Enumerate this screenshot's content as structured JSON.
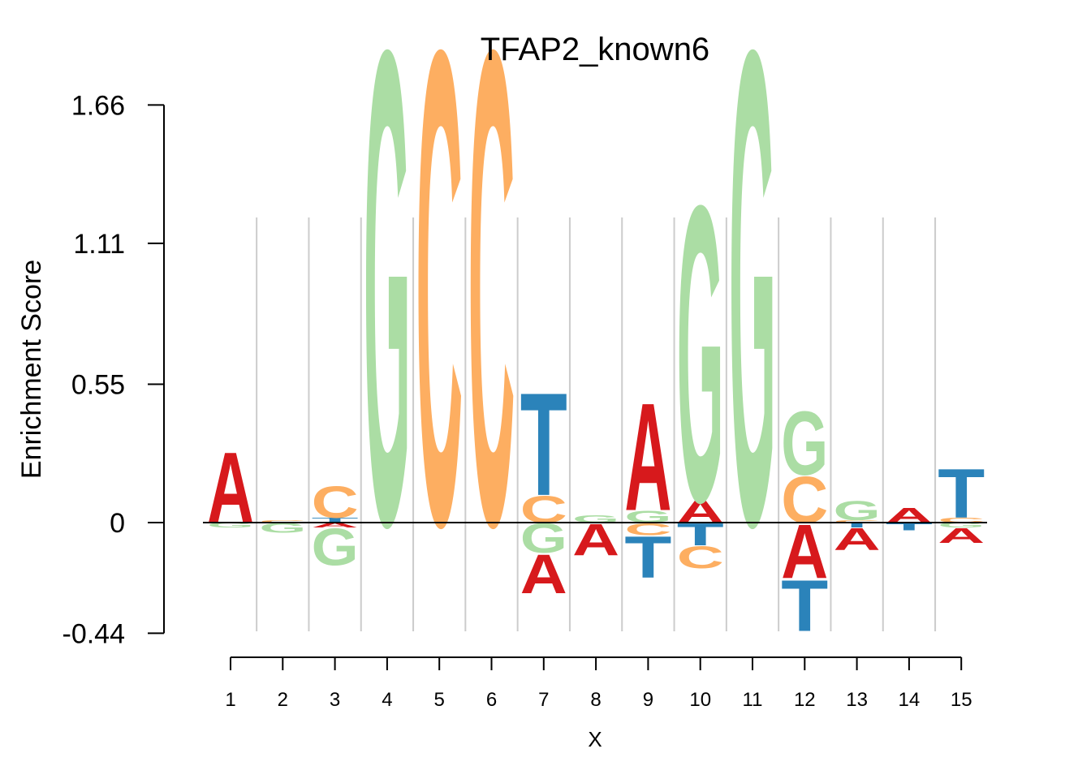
{
  "chart_data": {
    "type": "sequence_logo",
    "title": "TFAP2_known6",
    "xlabel": "X",
    "ylabel": "Enrichment Score",
    "y_ticks": [
      "1.66",
      "1.11",
      "0.55",
      "0",
      "-0.44"
    ],
    "y_tick_values": [
      1.66,
      1.11,
      0.55,
      0,
      -0.44
    ],
    "ylim": [
      -0.44,
      1.66
    ],
    "x_ticks": [
      "1",
      "2",
      "3",
      "4",
      "5",
      "6",
      "7",
      "8",
      "9",
      "10",
      "11",
      "12",
      "13",
      "14",
      "15"
    ],
    "colors": {
      "A": "#d7191c",
      "C": "#fdae61",
      "G": "#abdda4",
      "T": "#2b83ba"
    },
    "grid": true,
    "positions": [
      {
        "pos": 1,
        "pos_stack": [
          {
            "base": "A",
            "height": 0.29
          }
        ],
        "neg_stack": [
          {
            "base": "G",
            "height": 0.02
          }
        ]
      },
      {
        "pos": 2,
        "pos_stack": [
          {
            "base": "C",
            "height": 0.01
          }
        ],
        "neg_stack": [
          {
            "base": "G",
            "height": 0.04
          }
        ]
      },
      {
        "pos": 3,
        "pos_stack": [
          {
            "base": "T",
            "height": 0.02
          },
          {
            "base": "C",
            "height": 0.13
          }
        ],
        "neg_stack": [
          {
            "base": "A",
            "height": 0.02
          },
          {
            "base": "G",
            "height": 0.15
          }
        ]
      },
      {
        "pos": 4,
        "pos_stack": [
          {
            "base": "G",
            "height": 1.94
          }
        ],
        "neg_stack": []
      },
      {
        "pos": 5,
        "pos_stack": [
          {
            "base": "C",
            "height": 1.94
          }
        ],
        "neg_stack": []
      },
      {
        "pos": 6,
        "pos_stack": [
          {
            "base": "C",
            "height": 1.94
          }
        ],
        "neg_stack": []
      },
      {
        "pos": 7,
        "pos_stack": [
          {
            "base": "C",
            "height": 0.11
          },
          {
            "base": "T",
            "height": 0.42
          }
        ],
        "neg_stack": [
          {
            "base": "G",
            "height": 0.12
          },
          {
            "base": "A",
            "height": 0.16
          }
        ]
      },
      {
        "pos": 8,
        "pos_stack": [
          {
            "base": "G",
            "height": 0.03
          }
        ],
        "neg_stack": [
          {
            "base": "A",
            "height": 0.13
          }
        ]
      },
      {
        "pos": 9,
        "pos_stack": [
          {
            "base": "G",
            "height": 0.05
          },
          {
            "base": "A",
            "height": 0.44
          }
        ],
        "neg_stack": [
          {
            "base": "C",
            "height": 0.05
          },
          {
            "base": "T",
            "height": 0.17
          }
        ]
      },
      {
        "pos": 10,
        "pos_stack": [
          {
            "base": "A",
            "height": 0.09
          },
          {
            "base": "G",
            "height": 1.21
          }
        ],
        "neg_stack": [
          {
            "base": "T",
            "height": 0.09
          },
          {
            "base": "C",
            "height": 0.09
          }
        ]
      },
      {
        "pos": 11,
        "pos_stack": [
          {
            "base": "G",
            "height": 1.94
          }
        ],
        "neg_stack": []
      },
      {
        "pos": 12,
        "pos_stack": [
          {
            "base": "C",
            "height": 0.19
          },
          {
            "base": "G",
            "height": 0.26
          }
        ],
        "neg_stack": [
          {
            "base": "A",
            "height": 0.22
          },
          {
            "base": "T",
            "height": 0.21
          }
        ]
      },
      {
        "pos": 13,
        "pos_stack": [
          {
            "base": "C",
            "height": 0.01
          },
          {
            "base": "G",
            "height": 0.08
          }
        ],
        "neg_stack": [
          {
            "base": "T",
            "height": 0.02
          },
          {
            "base": "A",
            "height": 0.09
          }
        ]
      },
      {
        "pos": 14,
        "pos_stack": [
          {
            "base": "A",
            "height": 0.06
          }
        ],
        "neg_stack": [
          {
            "base": "T",
            "height": 0.03
          }
        ]
      },
      {
        "pos": 15,
        "pos_stack": [
          {
            "base": "C",
            "height": 0.02
          },
          {
            "base": "T",
            "height": 0.2
          }
        ],
        "neg_stack": [
          {
            "base": "G",
            "height": 0.02
          },
          {
            "base": "A",
            "height": 0.06
          }
        ]
      }
    ]
  }
}
